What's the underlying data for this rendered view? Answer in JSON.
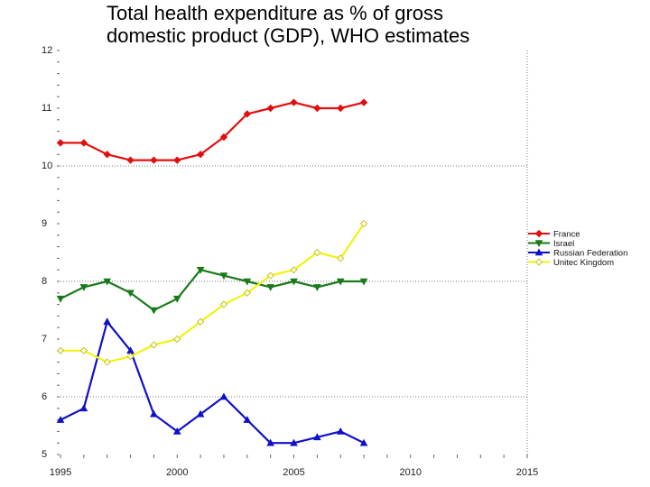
{
  "chart_data": {
    "type": "line",
    "title_lines": [
      "Total health expenditure as % of gross",
      "domestic product (GDP), WHO estimates"
    ],
    "xlabel": "",
    "ylabel": "",
    "xlim": [
      1995,
      2015
    ],
    "ylim": [
      5,
      12
    ],
    "x_ticks": [
      1995,
      2000,
      2005,
      2010,
      2015
    ],
    "y_ticks": [
      5,
      6,
      7,
      8,
      9,
      10,
      11,
      12
    ],
    "gridlines_y": [
      6,
      8,
      10
    ],
    "gridlines_x": [
      2015
    ],
    "legend_position": "right",
    "series": [
      {
        "name": "France",
        "color": "#e01010",
        "marker": "diamond",
        "x": [
          1995,
          1996,
          1997,
          1998,
          1999,
          2000,
          2001,
          2002,
          2003,
          2004,
          2005,
          2006,
          2007,
          2008
        ],
        "values": [
          10.4,
          10.4,
          10.2,
          10.1,
          10.1,
          10.1,
          10.2,
          10.5,
          10.9,
          11.0,
          11.1,
          11.0,
          11.0,
          11.1
        ]
      },
      {
        "name": "Israel",
        "color": "#1a7a1a",
        "marker": "triangle-down",
        "x": [
          1995,
          1996,
          1997,
          1998,
          1999,
          2000,
          2001,
          2002,
          2003,
          2004,
          2005,
          2006,
          2007,
          2008
        ],
        "values": [
          7.7,
          7.9,
          8.0,
          7.8,
          7.5,
          7.7,
          8.2,
          8.1,
          8.0,
          7.9,
          8.0,
          7.9,
          8.0,
          8.0
        ]
      },
      {
        "name": "Russian Federation",
        "color": "#1010c8",
        "marker": "triangle-up",
        "x": [
          1995,
          1996,
          1997,
          1998,
          1999,
          2000,
          2001,
          2002,
          2003,
          2004,
          2005,
          2006,
          2007,
          2008
        ],
        "values": [
          5.6,
          5.8,
          7.3,
          6.8,
          5.7,
          5.4,
          5.7,
          6.0,
          5.6,
          5.2,
          5.2,
          5.3,
          5.4,
          5.2
        ]
      },
      {
        "name": "Unitec Kingdom",
        "color": "#f2f210",
        "marker": "diamond-open",
        "x": [
          1995,
          1996,
          1997,
          1998,
          1999,
          2000,
          2001,
          2002,
          2003,
          2004,
          2005,
          2006,
          2007,
          2008
        ],
        "values": [
          6.8,
          6.8,
          6.6,
          6.7,
          6.9,
          7.0,
          7.3,
          7.6,
          7.8,
          8.1,
          8.2,
          8.5,
          8.4,
          9.0
        ]
      }
    ]
  }
}
